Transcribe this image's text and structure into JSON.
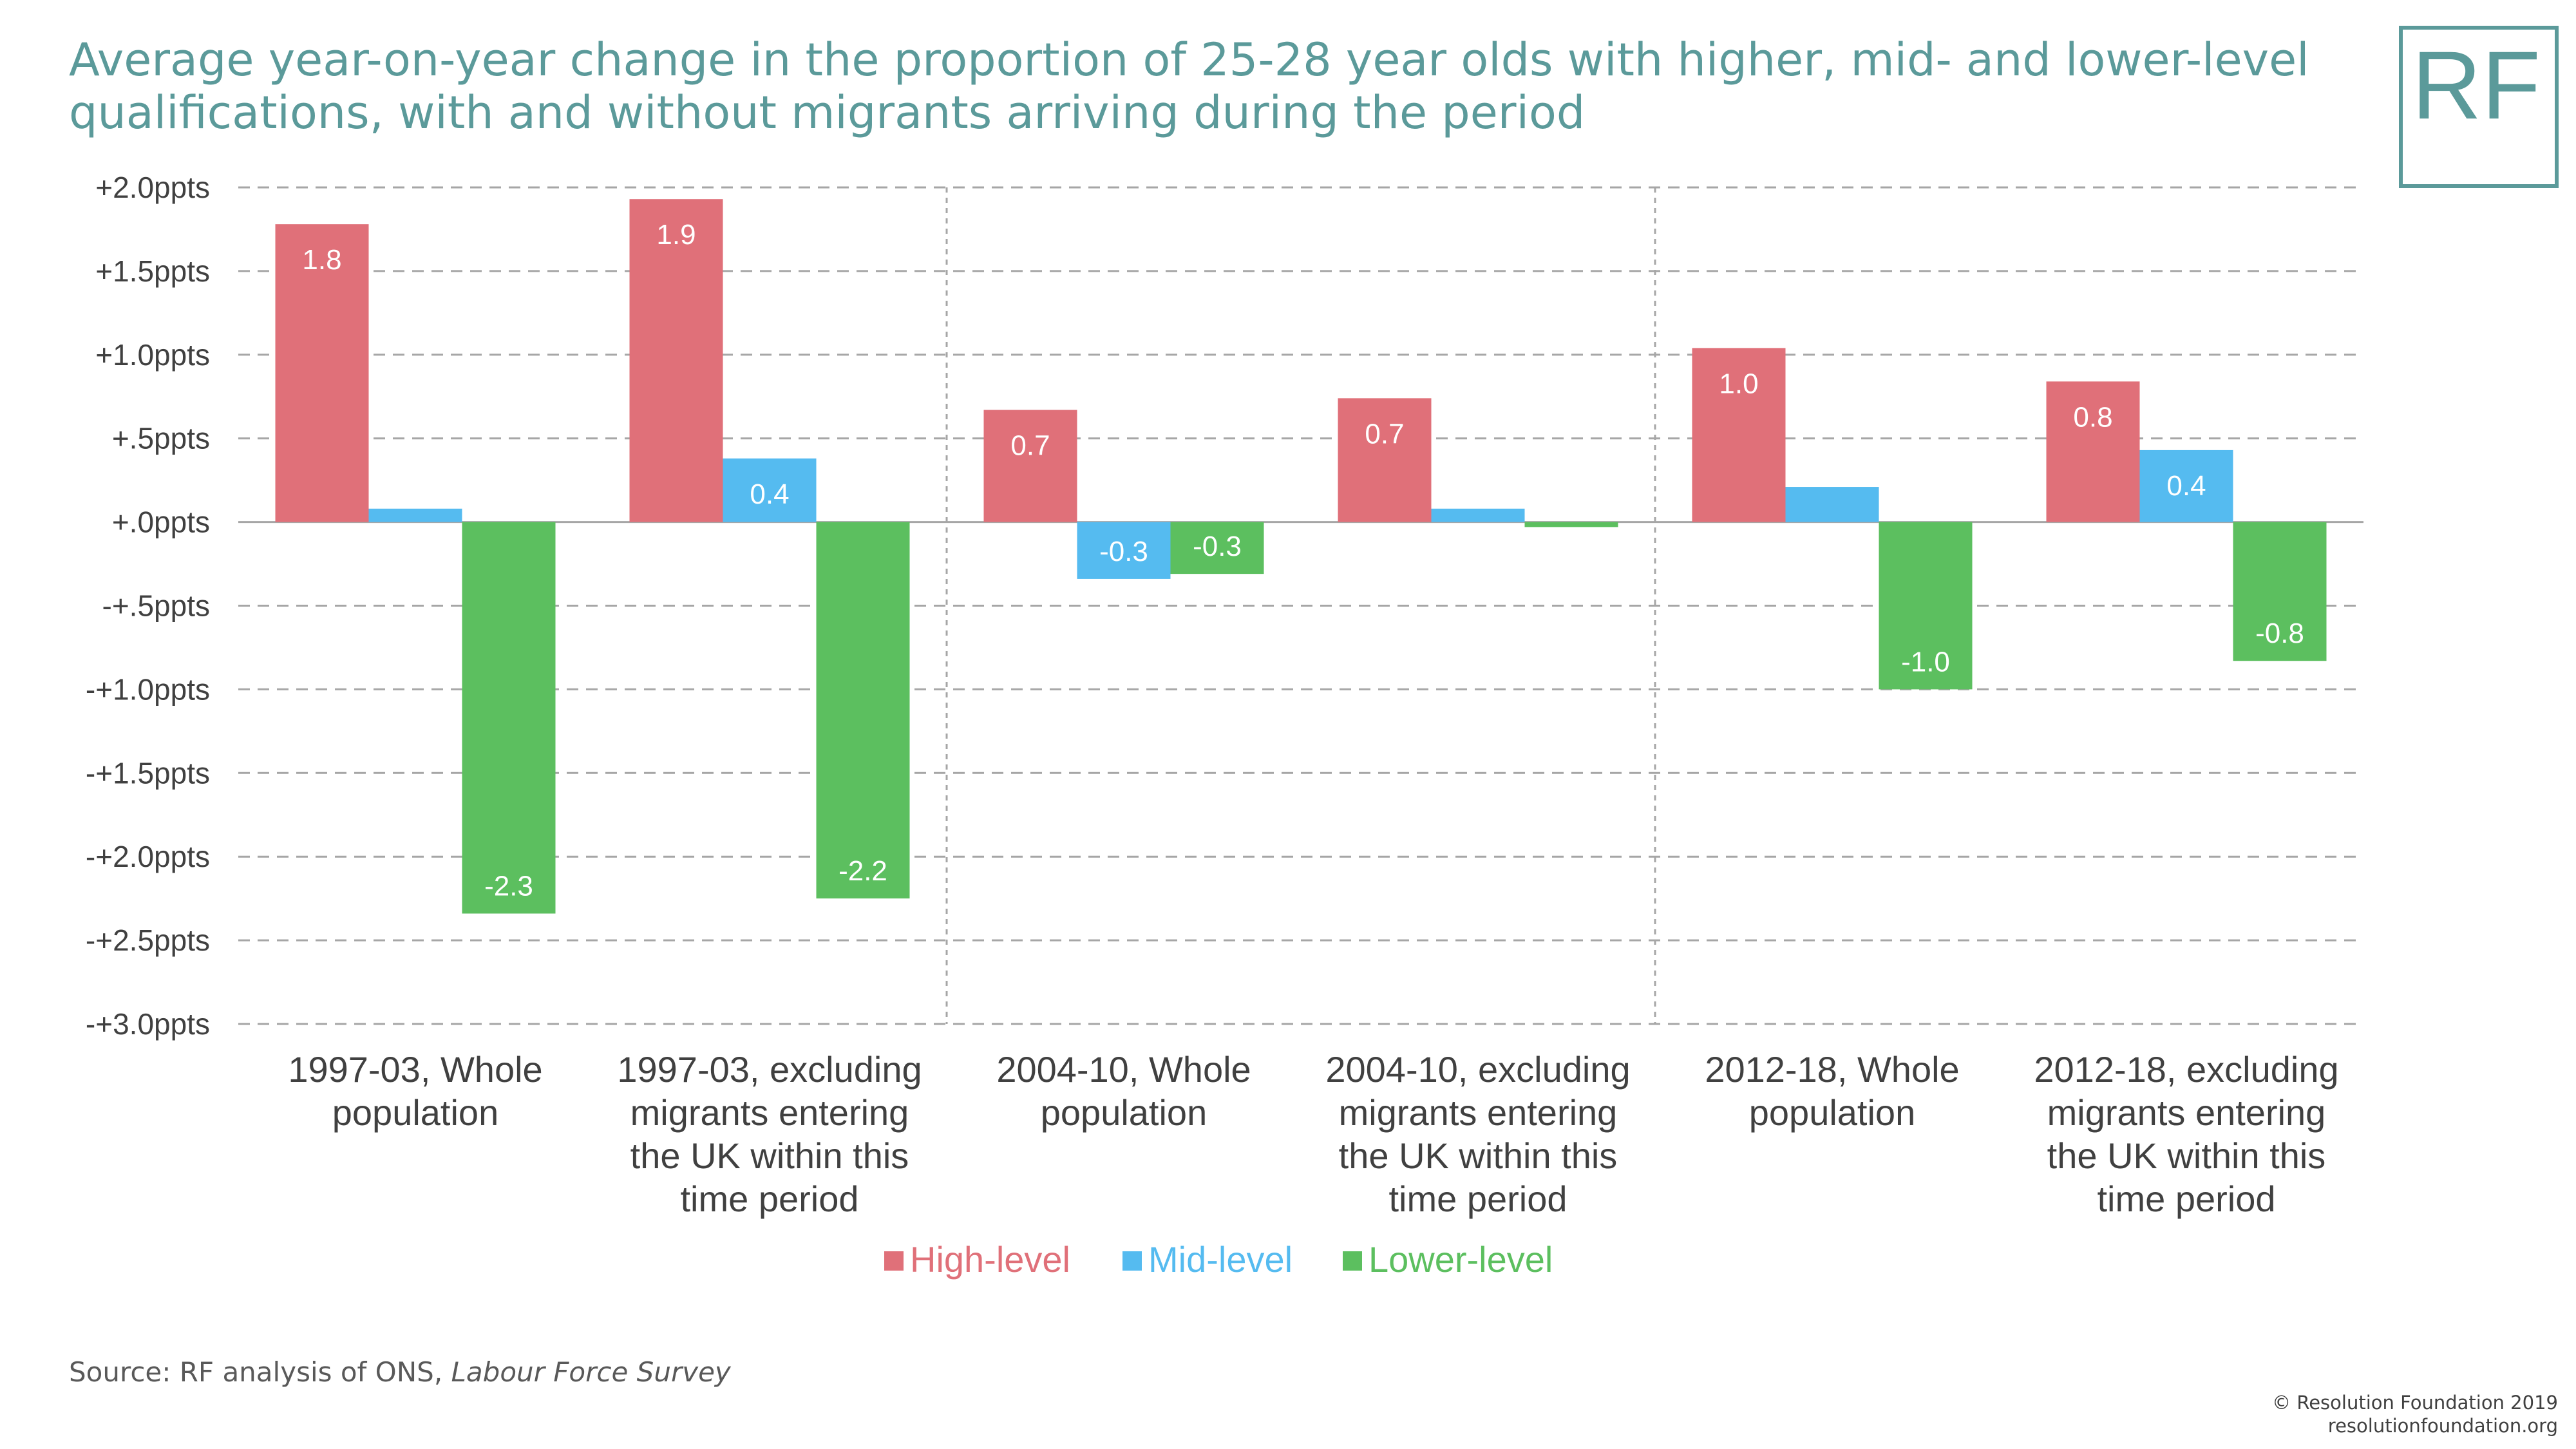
{
  "title": "Average year-on-year change in the proportion of 25-28 year olds with higher, mid- and lower-level qualifications, with and without migrants arriving during the period",
  "logo": {
    "text": "RF",
    "color": "#5b9a9a"
  },
  "source": {
    "prefix": "Source: RF analysis of ONS, ",
    "italic": "Labour Force Survey"
  },
  "copyright": {
    "line1": "© Resolution Foundation 2019",
    "line2": "resolutionfoundation.org"
  },
  "chart_data": {
    "type": "bar",
    "title": "",
    "xlabel": "",
    "ylabel": "",
    "ylim": [
      -3.0,
      2.0
    ],
    "y_ticks": [
      {
        "value": 2.0,
        "label": "+2.0ppts"
      },
      {
        "value": 1.5,
        "label": "+1.5ppts"
      },
      {
        "value": 1.0,
        "label": "+1.0ppts"
      },
      {
        "value": 0.5,
        "label": "+.5ppts"
      },
      {
        "value": 0.0,
        "label": "+.0ppts"
      },
      {
        "value": -0.5,
        "label": "-+.5ppts"
      },
      {
        "value": -1.0,
        "label": "-+1.0ppts"
      },
      {
        "value": -1.5,
        "label": "-+1.5ppts"
      },
      {
        "value": -2.0,
        "label": "-+2.0ppts"
      },
      {
        "value": -2.5,
        "label": "-+2.5ppts"
      },
      {
        "value": -3.0,
        "label": "-+3.0ppts"
      }
    ],
    "grid": true,
    "legend_position": "bottom",
    "categories": [
      [
        "1997-03, Whole",
        "population"
      ],
      [
        "1997-03, excluding",
        "migrants entering",
        "the UK within this",
        "time period"
      ],
      [
        "2004-10, Whole",
        "population"
      ],
      [
        "2004-10, excluding",
        "migrants entering",
        "the UK within this",
        "time period"
      ],
      [
        "2012-18, Whole",
        "population"
      ],
      [
        "2012-18, excluding",
        "migrants entering",
        "the UK within this",
        "time period"
      ]
    ],
    "series": [
      {
        "name": "High-level",
        "color": "#e07079",
        "values": [
          1.78,
          1.93,
          0.67,
          0.74,
          1.04,
          0.84
        ],
        "labels": [
          "1.8",
          "1.9",
          "0.7",
          "0.7",
          "1.0",
          "0.8"
        ]
      },
      {
        "name": "Mid-level",
        "color": "#55bbf0",
        "values": [
          0.08,
          0.38,
          -0.34,
          0.08,
          0.21,
          0.43
        ],
        "labels": [
          "",
          "0.4",
          "-0.3",
          "",
          "",
          "0.4"
        ]
      },
      {
        "name": "Lower-level",
        "color": "#5cbf5f",
        "values": [
          -2.34,
          -2.25,
          -0.31,
          -0.03,
          -1.0,
          -0.83
        ],
        "labels": [
          "-2.3",
          "-2.2",
          "-0.3",
          "",
          "-1.0",
          "-0.8"
        ]
      }
    ],
    "dividers_after_category": [
      1,
      3
    ]
  }
}
